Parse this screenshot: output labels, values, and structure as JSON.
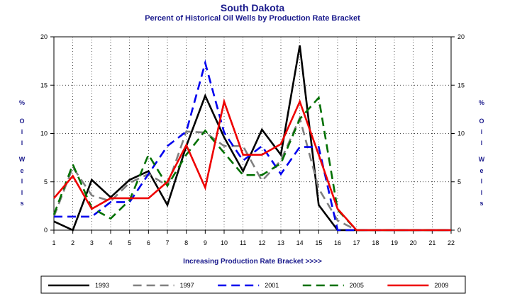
{
  "chart_data": {
    "type": "line",
    "title": "South Dakota",
    "subtitle": "Percent of Historical Oil Wells by Production Rate Bracket",
    "xlabel": "Increasing Production Rate Bracket >>>>",
    "ylabel": "% Oil Wells",
    "ylabel_chars": [
      "%",
      "O",
      "i",
      "l",
      "W",
      "e",
      "l",
      "l",
      "s"
    ],
    "x": [
      1,
      2,
      3,
      4,
      5,
      6,
      7,
      8,
      9,
      10,
      11,
      12,
      13,
      14,
      15,
      16,
      17,
      18,
      19,
      20,
      21,
      22
    ],
    "ylim": [
      0,
      20
    ],
    "yticks": [
      0,
      5,
      10,
      15,
      20
    ],
    "grid": true,
    "legend_position": "bottom",
    "series": [
      {
        "name": "1993",
        "color": "#000000",
        "dash": "solid",
        "values": [
          0.9,
          0.0,
          5.2,
          3.4,
          5.2,
          6.1,
          2.6,
          8.7,
          13.9,
          9.6,
          6.1,
          10.4,
          7.8,
          19.1,
          2.6,
          0,
          0,
          0,
          0,
          0,
          0,
          0
        ]
      },
      {
        "name": "1997",
        "color": "#808080",
        "dash": "dashed",
        "values": [
          1.4,
          6.5,
          3.6,
          3.0,
          4.9,
          5.8,
          4.6,
          10.2,
          10.1,
          8.7,
          8.7,
          5.1,
          7.2,
          11.6,
          4.3,
          1.0,
          0,
          0,
          0,
          0,
          0,
          0
        ]
      },
      {
        "name": "2001",
        "color": "#0000ee",
        "dash": "dashed",
        "values": [
          1.4,
          1.4,
          1.4,
          2.9,
          2.9,
          5.8,
          8.7,
          10.2,
          17.3,
          10.1,
          7.2,
          8.7,
          5.8,
          8.6,
          8.6,
          0,
          0,
          0,
          0,
          0,
          0,
          0
        ]
      },
      {
        "name": "2005",
        "color": "#007000",
        "dash": "dashed",
        "values": [
          1.6,
          6.8,
          2.3,
          1.2,
          3.1,
          7.8,
          4.6,
          7.8,
          10.3,
          8.0,
          5.7,
          5.7,
          6.9,
          11.5,
          13.7,
          2.1,
          0,
          0,
          0,
          0,
          0,
          0
        ]
      },
      {
        "name": "2009",
        "color": "#ee0000",
        "dash": "solid",
        "values": [
          3.3,
          5.6,
          2.2,
          3.3,
          3.3,
          3.3,
          5.0,
          8.8,
          4.4,
          13.3,
          7.8,
          7.8,
          8.9,
          13.3,
          7.8,
          2.2,
          0,
          0,
          0,
          0,
          0,
          0
        ]
      }
    ]
  }
}
